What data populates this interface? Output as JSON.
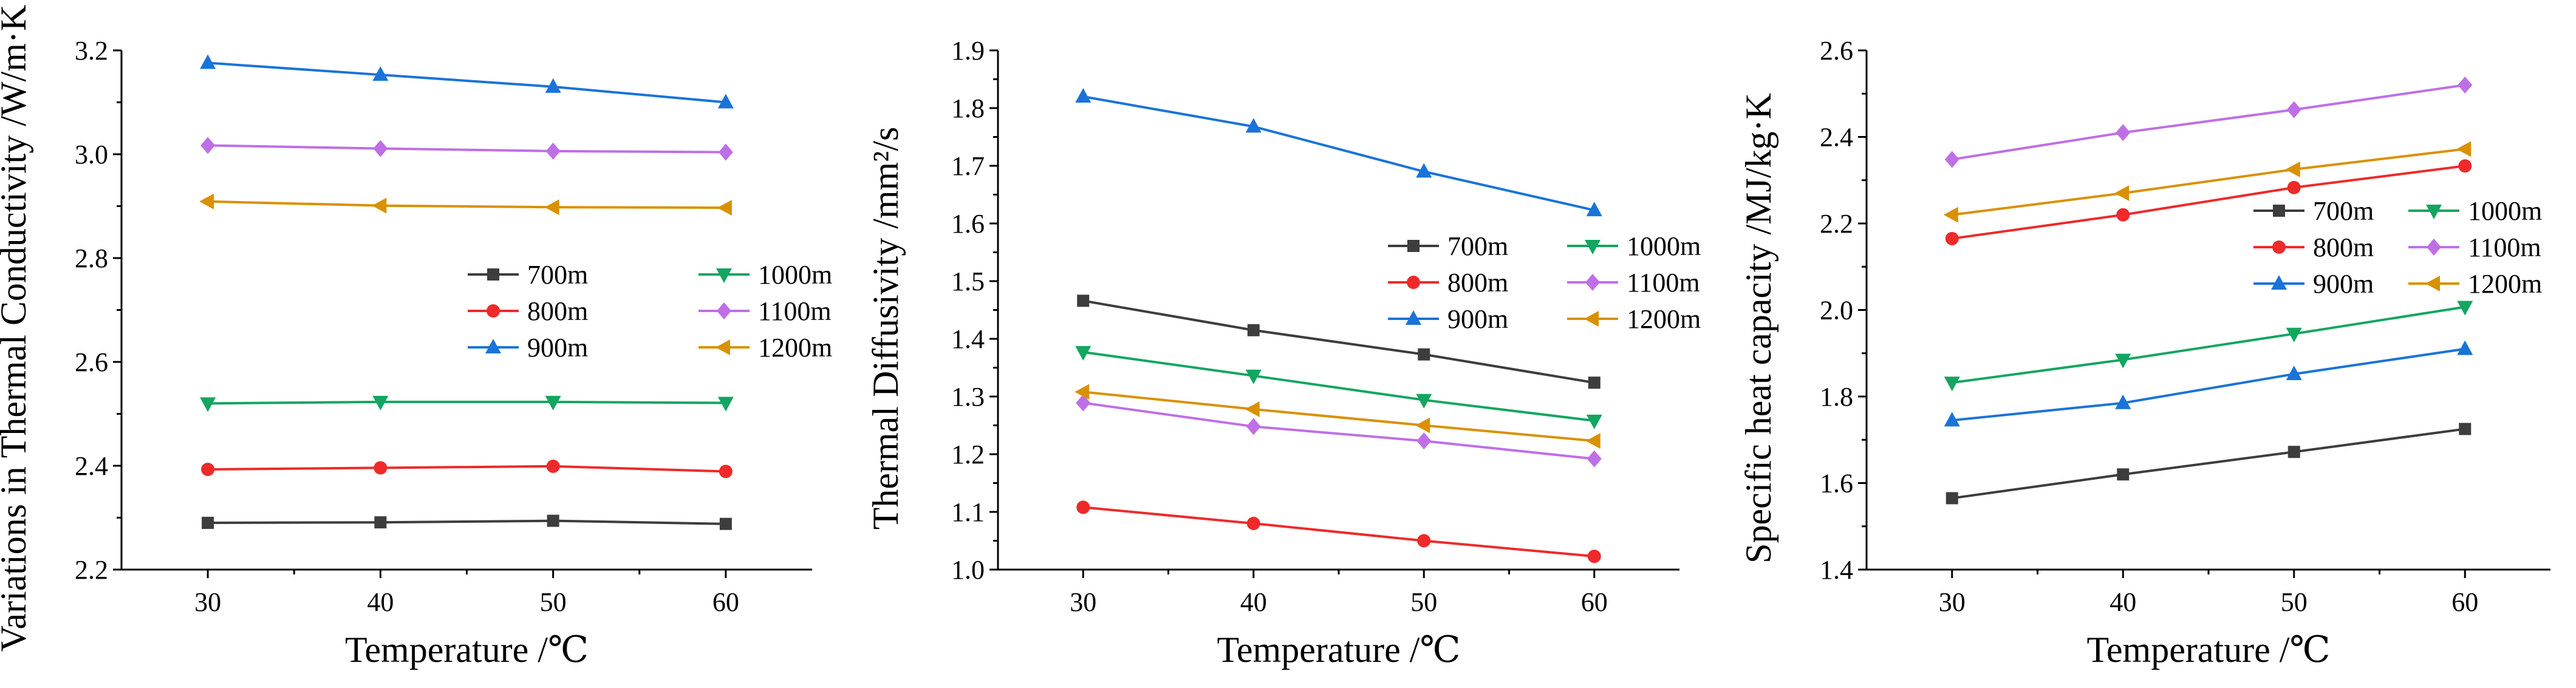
{
  "series_styles": [
    {
      "name": "700m",
      "color": "#3d3d3d",
      "marker": "square"
    },
    {
      "name": "800m",
      "color": "#ee2a2a",
      "marker": "circle"
    },
    {
      "name": "900m",
      "color": "#1a73d9",
      "marker": "triangle-up"
    },
    {
      "name": "1000m",
      "color": "#12a660",
      "marker": "triangle-down"
    },
    {
      "name": "1100m",
      "color": "#bf6fe6",
      "marker": "diamond"
    },
    {
      "name": "1200m",
      "color": "#d99100",
      "marker": "triangle-left"
    }
  ],
  "chart_data": [
    {
      "type": "line",
      "title": "",
      "xlabel": "Temperature /℃",
      "ylabel": "Variations in Thermal Conductivity /W/m·K",
      "x": [
        30,
        40,
        50,
        60
      ],
      "xlim": [
        25,
        65
      ],
      "ylim": [
        2.2,
        3.2
      ],
      "yticks": [
        "2.2",
        "2.4",
        "2.6",
        "2.8",
        "3.0",
        "3.2"
      ],
      "xticks": [
        "30",
        "40",
        "50",
        "60"
      ],
      "legend": "center-right",
      "series": [
        {
          "name": "700m",
          "values": [
            2.29,
            2.291,
            2.294,
            2.288
          ]
        },
        {
          "name": "800m",
          "values": [
            2.393,
            2.396,
            2.399,
            2.389
          ]
        },
        {
          "name": "900m",
          "values": [
            3.176,
            3.153,
            3.13,
            3.1
          ]
        },
        {
          "name": "1000m",
          "values": [
            2.52,
            2.523,
            2.523,
            2.521
          ]
        },
        {
          "name": "1100m",
          "values": [
            3.017,
            3.011,
            3.006,
            3.004
          ]
        },
        {
          "name": "1200m",
          "values": [
            2.909,
            2.901,
            2.898,
            2.897
          ]
        }
      ]
    },
    {
      "type": "line",
      "title": "",
      "xlabel": "Temperature /℃",
      "ylabel": "Thermal Diffusivity /mm²/s",
      "x": [
        30,
        40,
        50,
        60
      ],
      "xlim": [
        25,
        65
      ],
      "ylim": [
        1.0,
        1.9
      ],
      "yticks": [
        "1.0",
        "1.1",
        "1.2",
        "1.3",
        "1.4",
        "1.5",
        "1.6",
        "1.7",
        "1.8",
        "1.9"
      ],
      "xticks": [
        "30",
        "40",
        "50",
        "60"
      ],
      "legend": "center-right",
      "series": [
        {
          "name": "700m",
          "values": [
            1.466,
            1.415,
            1.373,
            1.324
          ]
        },
        {
          "name": "800m",
          "values": [
            1.108,
            1.08,
            1.05,
            1.023
          ]
        },
        {
          "name": "900m",
          "values": [
            1.82,
            1.768,
            1.69,
            1.623
          ]
        },
        {
          "name": "1000m",
          "values": [
            1.377,
            1.336,
            1.294,
            1.258
          ]
        },
        {
          "name": "1100m",
          "values": [
            1.289,
            1.248,
            1.223,
            1.192
          ]
        },
        {
          "name": "1200m",
          "values": [
            1.308,
            1.278,
            1.25,
            1.223
          ]
        }
      ]
    },
    {
      "type": "line",
      "title": "",
      "xlabel": "Temperature /℃",
      "ylabel": "Specific heat capacity /MJ/kg·K",
      "x": [
        30,
        40,
        50,
        60
      ],
      "xlim": [
        25,
        65
      ],
      "ylim": [
        1.4,
        2.6
      ],
      "yticks": [
        "1.4",
        "1.6",
        "1.8",
        "2.0",
        "2.2",
        "2.4",
        "2.6"
      ],
      "xticks": [
        "30",
        "40",
        "50",
        "60"
      ],
      "legend": "top-right",
      "series": [
        {
          "name": "700m",
          "values": [
            1.565,
            1.62,
            1.672,
            1.725
          ]
        },
        {
          "name": "800m",
          "values": [
            2.165,
            2.22,
            2.283,
            2.333
          ]
        },
        {
          "name": "900m",
          "values": [
            1.745,
            1.785,
            1.852,
            1.91
          ]
        },
        {
          "name": "1000m",
          "values": [
            1.832,
            1.885,
            1.945,
            2.007
          ]
        },
        {
          "name": "1100m",
          "values": [
            2.348,
            2.41,
            2.463,
            2.52
          ]
        },
        {
          "name": "1200m",
          "values": [
            2.22,
            2.27,
            2.325,
            2.372
          ]
        }
      ]
    }
  ]
}
